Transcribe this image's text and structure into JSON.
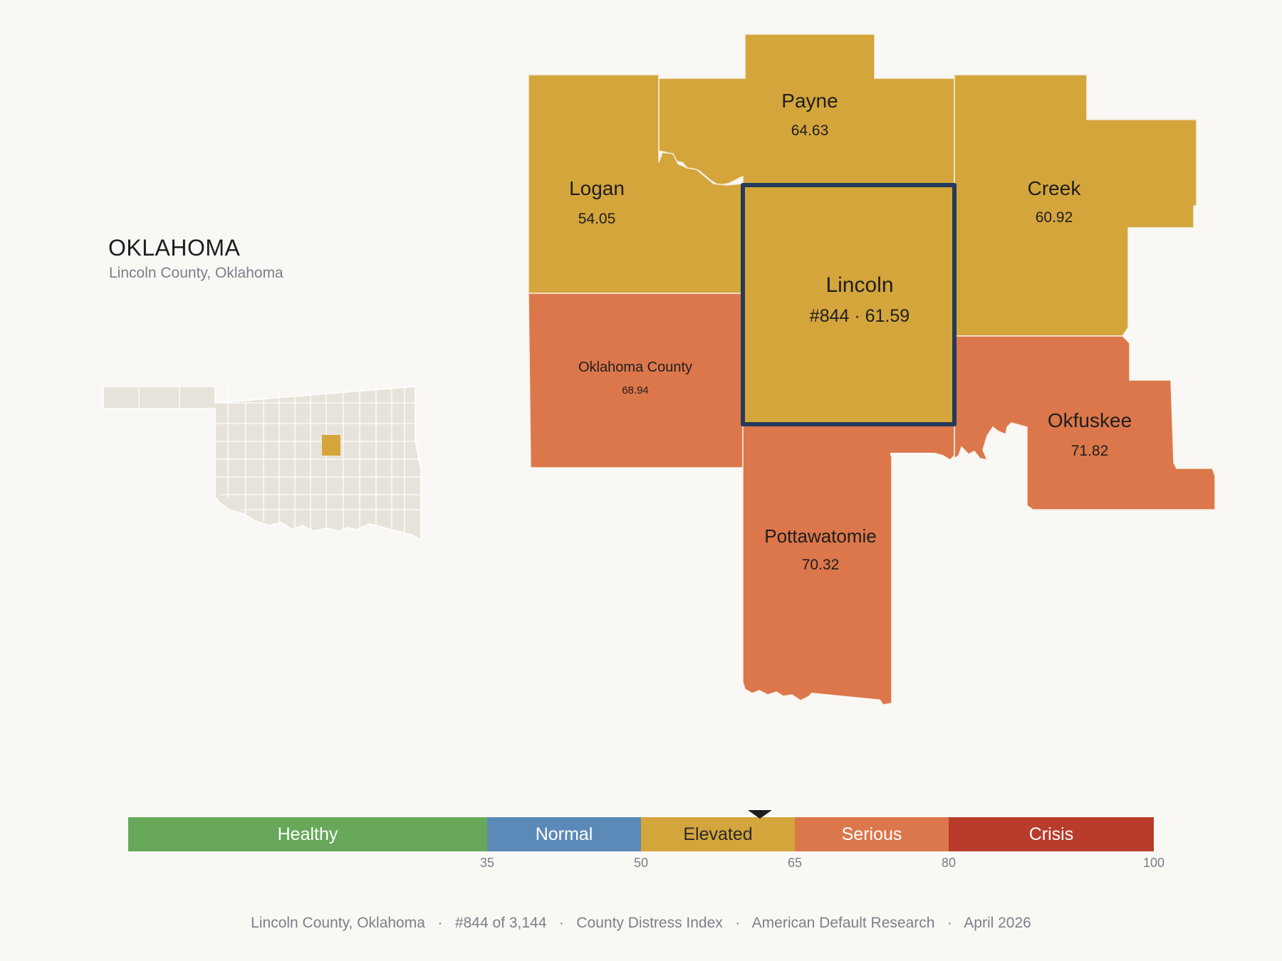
{
  "header": {
    "state": "OKLAHOMA",
    "subtitle": "Lincoln County, Oklahoma"
  },
  "counties": [
    {
      "id": "payne",
      "name": "Payne",
      "value": "64.63",
      "category": "Elevated"
    },
    {
      "id": "logan",
      "name": "Logan",
      "value": "54.05",
      "category": "Elevated"
    },
    {
      "id": "creek",
      "name": "Creek",
      "value": "60.92",
      "category": "Elevated"
    },
    {
      "id": "lincoln",
      "name": "Lincoln",
      "value": "#844 · 61.59",
      "category": "Elevated",
      "focus": true
    },
    {
      "id": "oklahoma",
      "name": "Oklahoma County",
      "value": "68.94",
      "category": "Serious"
    },
    {
      "id": "okfuskee",
      "name": "Okfuskee",
      "value": "71.82",
      "category": "Serious"
    },
    {
      "id": "pottawatomie",
      "name": "Pottawatomie",
      "value": "70.32",
      "category": "Serious"
    }
  ],
  "scale": {
    "min": 0,
    "max": 100,
    "marker_value": 61.59,
    "bands": [
      {
        "label": "Healthy",
        "from": 0,
        "to": 35,
        "color": "#67a85a",
        "text_color": "#ffffff"
      },
      {
        "label": "Normal",
        "from": 35,
        "to": 50,
        "color": "#5b8ab8",
        "text_color": "#ffffff"
      },
      {
        "label": "Elevated",
        "from": 50,
        "to": 65,
        "color": "#d4a53b",
        "text_color": "#2a2a2a"
      },
      {
        "label": "Serious",
        "from": 65,
        "to": 80,
        "color": "#dc774b",
        "text_color": "#ffffff"
      },
      {
        "label": "Crisis",
        "from": 80,
        "to": 100,
        "color": "#b93b2c",
        "text_color": "#ffffff"
      }
    ],
    "ticks": [
      "35",
      "50",
      "65",
      "80",
      "100"
    ]
  },
  "colors": {
    "elevated": "#d4a53b",
    "serious": "#dc774b",
    "focus_outline": "#253a5a",
    "inset_fill": "#e8e3da",
    "inset_highlight": "#d4a53b",
    "background": "#f9f8f5"
  },
  "footer": {
    "county": "Lincoln County, Oklahoma",
    "rank": "#844 of 3,144",
    "index": "County Distress Index",
    "source": "American Default Research",
    "date": "April 2026"
  }
}
